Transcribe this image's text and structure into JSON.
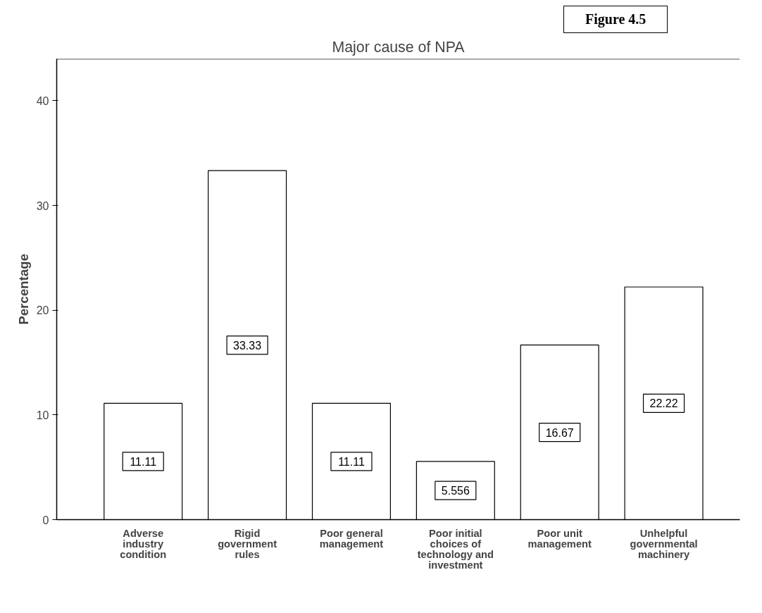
{
  "chart_data": {
    "type": "bar",
    "title": "Major cause of NPA",
    "ylabel": "Percentage",
    "categories": [
      "Adverse industry condition",
      "Rigid government rules",
      "Poor general management",
      "Poor initial choices of technology and investment",
      "Poor unit management",
      "Unhelpful governmental machinery"
    ],
    "values": [
      11.11,
      33.33,
      11.11,
      5.556,
      16.67,
      22.22
    ],
    "color": "#ffffff",
    "ylim": [
      0,
      44
    ],
    "yticks": [
      0,
      10,
      20,
      30,
      40
    ],
    "grid": false,
    "data_labels": true,
    "annotations": [
      "Figure 4.5"
    ]
  }
}
